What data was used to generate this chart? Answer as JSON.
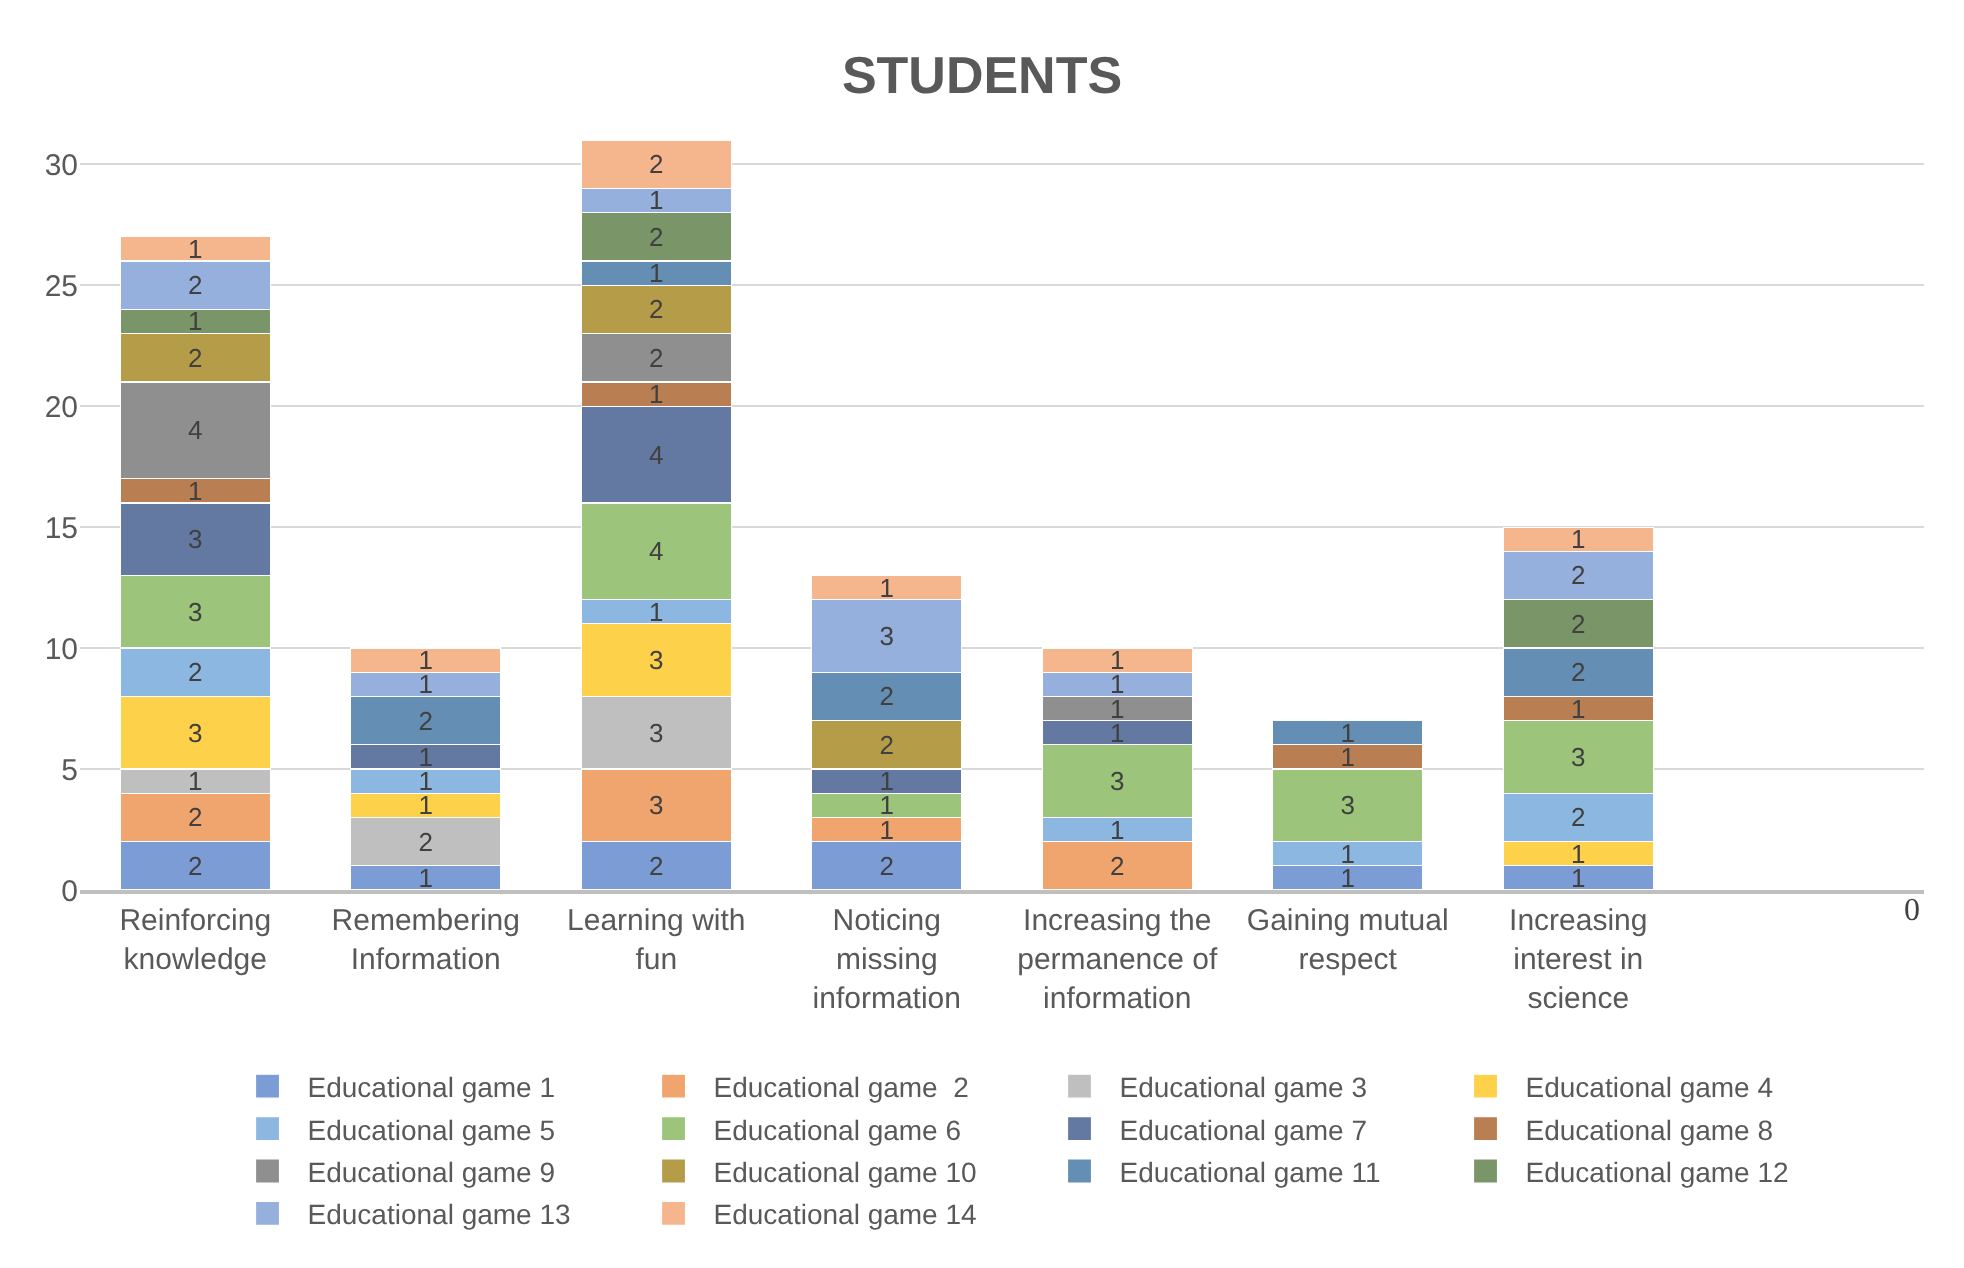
{
  "chart_data": {
    "type": "bar",
    "title": "STUDENTS",
    "stacked": true,
    "data_labels": true,
    "grid": "y",
    "legend": "bottom",
    "categories": [
      "Reinforcing\nknowledge",
      "Remembering\nInformation",
      "Learning with\nfun",
      "Noticing\nmissing\ninformation",
      "Increasing the\npermanence of\ninformation",
      "Gaining mutual\nrespect",
      "Increasing\ninterest in\nscience",
      null
    ],
    "ylim": [
      0,
      31
    ],
    "yticks": [
      0,
      5,
      10,
      15,
      20,
      25,
      30
    ],
    "annotations": [
      "0"
    ],
    "series": [
      {
        "name": "Educational game 1",
        "color": "#7b9cd5",
        "values": [
          2,
          1,
          2,
          2,
          null,
          1,
          1,
          null
        ]
      },
      {
        "name": "Educational game  2",
        "color": "#f0a46e",
        "values": [
          2,
          null,
          3,
          1,
          2,
          null,
          null,
          null
        ]
      },
      {
        "name": "Educational game 3",
        "color": "#bfbfbf",
        "values": [
          1,
          2,
          3,
          null,
          null,
          null,
          null,
          null
        ]
      },
      {
        "name": "Educational game 4",
        "color": "#fed14a",
        "values": [
          3,
          1,
          3,
          null,
          null,
          null,
          1,
          null
        ]
      },
      {
        "name": "Educational game 5",
        "color": "#8cb7e0",
        "values": [
          2,
          1,
          1,
          null,
          1,
          1,
          2,
          null
        ]
      },
      {
        "name": "Educational game 6",
        "color": "#9cc47a",
        "values": [
          3,
          null,
          4,
          1,
          3,
          3,
          3,
          null
        ]
      },
      {
        "name": "Educational game 7",
        "color": "#6479a2",
        "values": [
          3,
          1,
          4,
          1,
          1,
          null,
          null,
          null
        ]
      },
      {
        "name": "Educational game 8",
        "color": "#b97e52",
        "values": [
          1,
          null,
          1,
          null,
          null,
          1,
          1,
          null
        ]
      },
      {
        "name": "Educational game 9",
        "color": "#8f8f8f",
        "values": [
          4,
          null,
          2,
          null,
          1,
          null,
          null,
          null
        ]
      },
      {
        "name": "Educational game 10",
        "color": "#b59c48",
        "values": [
          2,
          null,
          2,
          2,
          null,
          null,
          null,
          null
        ]
      },
      {
        "name": "Educational game 11",
        "color": "#648eb3",
        "values": [
          null,
          2,
          1,
          2,
          null,
          1,
          2,
          null
        ]
      },
      {
        "name": "Educational game 12",
        "color": "#7a9568",
        "values": [
          1,
          null,
          2,
          null,
          null,
          null,
          2,
          null
        ]
      },
      {
        "name": "Educational game 13",
        "color": "#95b0dd",
        "values": [
          2,
          1,
          1,
          3,
          1,
          null,
          2,
          null
        ]
      },
      {
        "name": "Educational game 14",
        "color": "#f5b68e",
        "values": [
          1,
          1,
          2,
          1,
          1,
          null,
          1,
          null
        ]
      }
    ]
  }
}
